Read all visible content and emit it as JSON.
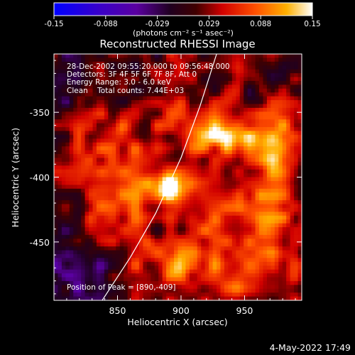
{
  "chart_data": {
    "type": "heatmap",
    "title": "Reconstructed RHESSI Image",
    "xlabel": "Heliocentric X (arcsec)",
    "ylabel": "Heliocentric Y (arcsec)",
    "xlim": [
      800,
      995
    ],
    "ylim": [
      -495,
      -305
    ],
    "x_ticks": [
      850,
      900,
      950
    ],
    "y_ticks": [
      -350,
      -400,
      -450
    ],
    "colorbar": {
      "min": -0.15,
      "max": 0.15,
      "ticks": [
        "-0.15",
        "-0.088",
        "-0.029",
        "0.029",
        "0.088",
        "0.15"
      ],
      "label": "(photons cm⁻² s⁻¹ asec⁻²)",
      "colors": [
        "#0000ff",
        "#5a00a0",
        "#000000",
        "#ff2000",
        "#ff9000",
        "#ffffff"
      ]
    },
    "annotations": [
      "28-Dec-2002 09:55:20.000 to 09:56:48.000",
      "Detectors: 3F 4F 5F 6F 7F 8F, Att 0",
      "Energy Range: 3.0 - 6.0 keV",
      "Clean    Total counts: 7.44E+03"
    ],
    "peak_label": "Position of Peak = [890,-409]",
    "peak": {
      "x": 890,
      "y": -409
    },
    "sources": [
      {
        "x": 890,
        "y": -408,
        "value": 0.15,
        "sx": 11,
        "sy": 8
      },
      {
        "x": 945,
        "y": -370,
        "value": 0.1,
        "sx": 24,
        "sy": 10
      },
      {
        "x": 975,
        "y": -385,
        "value": 0.08,
        "sx": 10,
        "sy": 28
      },
      {
        "x": 915,
        "y": -355,
        "value": 0.07,
        "sx": 16,
        "sy": 14
      },
      {
        "x": 855,
        "y": -425,
        "value": 0.05,
        "sx": 22,
        "sy": 28
      },
      {
        "x": 950,
        "y": -450,
        "value": 0.07,
        "sx": 28,
        "sy": 32
      },
      {
        "x": 900,
        "y": -470,
        "value": 0.06,
        "sx": 20,
        "sy": 14
      },
      {
        "x": 845,
        "y": -375,
        "value": 0.05,
        "sx": 18,
        "sy": 22
      }
    ],
    "negative_regions": [
      {
        "x": 815,
        "y": -475,
        "value": -0.06,
        "sx": 18,
        "sy": 22
      },
      {
        "x": 810,
        "y": -330,
        "value": -0.04,
        "sx": 10,
        "sy": 14
      }
    ],
    "limb_curve": [
      [
        838,
        -495
      ],
      [
        860,
        -462
      ],
      [
        880,
        -428
      ],
      [
        900,
        -385
      ],
      [
        915,
        -345
      ],
      [
        928,
        -305
      ]
    ]
  },
  "timestamp": "4-May-2022 17:49"
}
